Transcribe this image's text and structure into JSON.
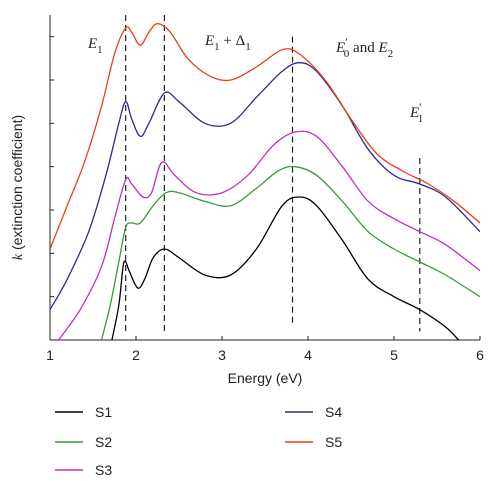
{
  "chart_data": {
    "type": "line",
    "xlabel": "Energy (eV)",
    "ylabel": "k (extinction coefficient)",
    "xlim": [
      1,
      6
    ],
    "xticks": [
      "1",
      "2",
      "3",
      "4",
      "5",
      "6"
    ],
    "annotations": [
      {
        "id": "E1",
        "base": "E",
        "sub": "1",
        "rest": ""
      },
      {
        "id": "E1D1",
        "base": "E",
        "sub": "1",
        "rest": " + Δ",
        "sub2": "1"
      },
      {
        "id": "E0E2",
        "base": "E",
        "prime": "′",
        "sub": "0",
        "rest": " and E",
        "sub2": "2"
      },
      {
        "id": "E1p",
        "base": "E",
        "prime": "′",
        "sub": "1",
        "rest": ""
      }
    ],
    "reference_lines_x": [
      1.88,
      2.33,
      3.82,
      5.3
    ],
    "series": [
      {
        "name": "S1",
        "color": "#000000",
        "points": [
          [
            1.72,
            0.0
          ],
          [
            1.8,
            0.08
          ],
          [
            1.85,
            0.17
          ],
          [
            1.88,
            0.18
          ],
          [
            1.92,
            0.16
          ],
          [
            2.02,
            0.12
          ],
          [
            2.1,
            0.14
          ],
          [
            2.2,
            0.19
          ],
          [
            2.33,
            0.21
          ],
          [
            2.5,
            0.19
          ],
          [
            2.8,
            0.15
          ],
          [
            3.1,
            0.15
          ],
          [
            3.4,
            0.21
          ],
          [
            3.7,
            0.31
          ],
          [
            3.9,
            0.33
          ],
          [
            4.1,
            0.31
          ],
          [
            4.4,
            0.23
          ],
          [
            4.7,
            0.14
          ],
          [
            5.0,
            0.1
          ],
          [
            5.3,
            0.07
          ],
          [
            5.6,
            0.03
          ],
          [
            5.75,
            0.0
          ]
        ]
      },
      {
        "name": "S2",
        "color": "#3a9a3a",
        "points": [
          [
            1.6,
            0.0
          ],
          [
            1.7,
            0.08
          ],
          [
            1.8,
            0.18
          ],
          [
            1.88,
            0.26
          ],
          [
            1.95,
            0.27
          ],
          [
            2.05,
            0.27
          ],
          [
            2.2,
            0.31
          ],
          [
            2.35,
            0.34
          ],
          [
            2.5,
            0.34
          ],
          [
            2.8,
            0.32
          ],
          [
            3.1,
            0.31
          ],
          [
            3.4,
            0.35
          ],
          [
            3.65,
            0.39
          ],
          [
            3.85,
            0.4
          ],
          [
            4.1,
            0.38
          ],
          [
            4.4,
            0.32
          ],
          [
            4.7,
            0.25
          ],
          [
            5.0,
            0.21
          ],
          [
            5.3,
            0.18
          ],
          [
            5.6,
            0.15
          ],
          [
            6.0,
            0.1
          ]
        ]
      },
      {
        "name": "S3",
        "color": "#c030c0",
        "points": [
          [
            1.1,
            0.0
          ],
          [
            1.35,
            0.07
          ],
          [
            1.6,
            0.17
          ],
          [
            1.75,
            0.28
          ],
          [
            1.88,
            0.37
          ],
          [
            1.95,
            0.36
          ],
          [
            2.08,
            0.33
          ],
          [
            2.18,
            0.34
          ],
          [
            2.3,
            0.41
          ],
          [
            2.45,
            0.38
          ],
          [
            2.7,
            0.34
          ],
          [
            3.0,
            0.34
          ],
          [
            3.3,
            0.38
          ],
          [
            3.6,
            0.45
          ],
          [
            3.85,
            0.48
          ],
          [
            4.1,
            0.47
          ],
          [
            4.4,
            0.4
          ],
          [
            4.7,
            0.32
          ],
          [
            5.0,
            0.28
          ],
          [
            5.3,
            0.25
          ],
          [
            5.6,
            0.22
          ],
          [
            6.0,
            0.16
          ]
        ]
      },
      {
        "name": "S4",
        "color": "#2c2c8c",
        "points": [
          [
            1.0,
            0.07
          ],
          [
            1.2,
            0.14
          ],
          [
            1.45,
            0.25
          ],
          [
            1.65,
            0.38
          ],
          [
            1.8,
            0.5
          ],
          [
            1.88,
            0.55
          ],
          [
            1.95,
            0.51
          ],
          [
            2.05,
            0.47
          ],
          [
            2.15,
            0.5
          ],
          [
            2.33,
            0.57
          ],
          [
            2.5,
            0.55
          ],
          [
            2.8,
            0.5
          ],
          [
            3.1,
            0.5
          ],
          [
            3.4,
            0.56
          ],
          [
            3.7,
            0.62
          ],
          [
            3.9,
            0.64
          ],
          [
            4.1,
            0.62
          ],
          [
            4.4,
            0.54
          ],
          [
            4.7,
            0.44
          ],
          [
            5.0,
            0.38
          ],
          [
            5.3,
            0.36
          ],
          [
            5.6,
            0.33
          ],
          [
            6.0,
            0.25
          ]
        ]
      },
      {
        "name": "S5",
        "color": "#e8401c",
        "points": [
          [
            1.0,
            0.21
          ],
          [
            1.2,
            0.31
          ],
          [
            1.4,
            0.41
          ],
          [
            1.6,
            0.54
          ],
          [
            1.75,
            0.66
          ],
          [
            1.88,
            0.72
          ],
          [
            1.95,
            0.71
          ],
          [
            2.05,
            0.68
          ],
          [
            2.15,
            0.71
          ],
          [
            2.25,
            0.73
          ],
          [
            2.4,
            0.71
          ],
          [
            2.6,
            0.65
          ],
          [
            2.85,
            0.61
          ],
          [
            3.1,
            0.6
          ],
          [
            3.4,
            0.63
          ],
          [
            3.7,
            0.67
          ],
          [
            3.9,
            0.66
          ],
          [
            4.2,
            0.6
          ],
          [
            4.5,
            0.51
          ],
          [
            4.8,
            0.43
          ],
          [
            5.1,
            0.39
          ],
          [
            5.4,
            0.36
          ],
          [
            5.7,
            0.32
          ],
          [
            6.0,
            0.27
          ]
        ]
      }
    ],
    "ylim": [
      0,
      0.75
    ],
    "grid": false,
    "legend_placement": "bottom",
    "legend_order": [
      "S1",
      "S4",
      "S2",
      "S5",
      "S3"
    ]
  }
}
